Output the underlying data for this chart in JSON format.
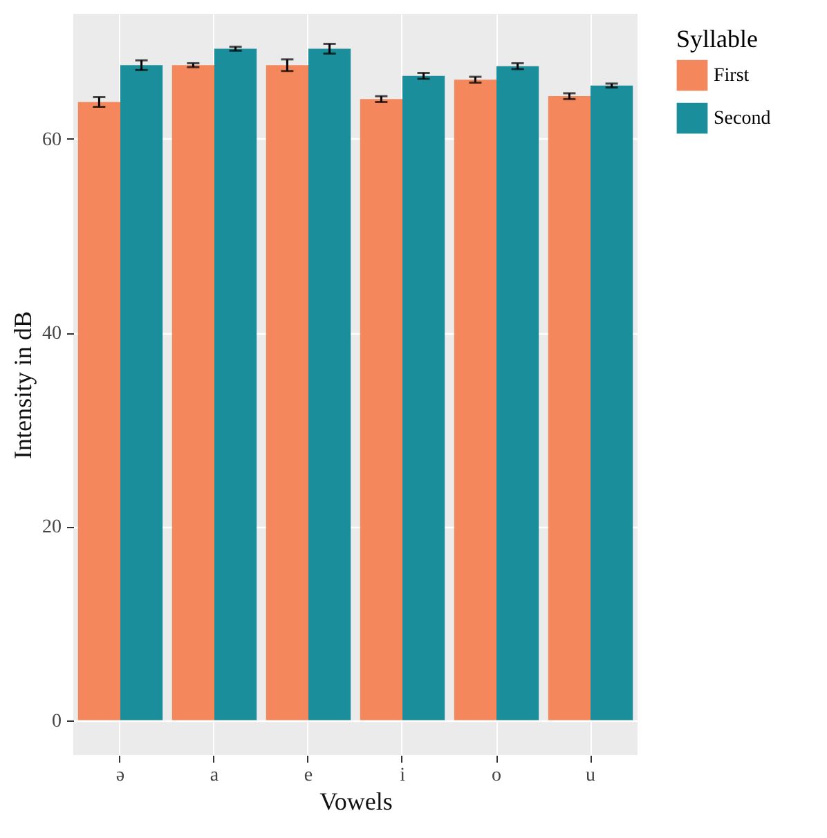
{
  "chart_data": {
    "type": "bar",
    "categories": [
      "ə",
      "a",
      "e",
      "i",
      "o",
      "u"
    ],
    "series": [
      {
        "name": "First",
        "color": "#f4875c",
        "values": [
          63.8,
          67.6,
          67.6,
          64.1,
          66.1,
          64.4
        ],
        "errors": [
          0.5,
          0.2,
          0.6,
          0.3,
          0.3,
          0.3
        ]
      },
      {
        "name": "Second",
        "color": "#1a8f9b",
        "values": [
          67.6,
          69.3,
          69.3,
          66.5,
          67.5,
          65.5
        ],
        "errors": [
          0.5,
          0.2,
          0.5,
          0.3,
          0.3,
          0.2
        ]
      }
    ],
    "xlabel": "Vowels",
    "ylabel": "Intensity in dB",
    "legend_title": "Syllable",
    "ylim": [
      -3.6,
      72.9
    ],
    "yticks": [
      0,
      20,
      40,
      60
    ],
    "grid": true,
    "legend": "right"
  }
}
